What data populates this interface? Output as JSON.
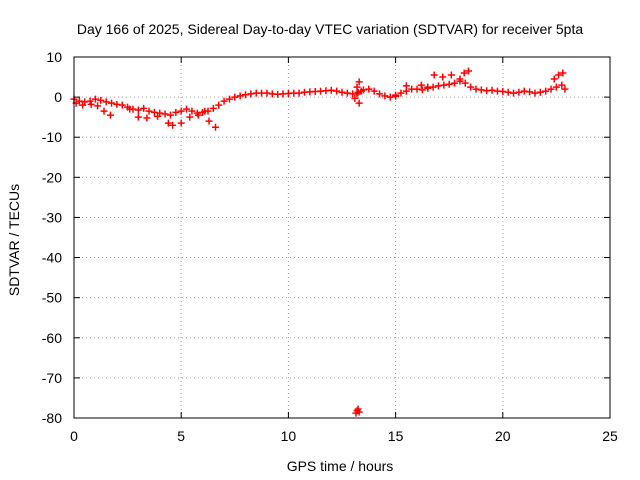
{
  "chart_data": {
    "type": "scatter",
    "title": "Day 166 of 2025, Sidereal Day-to-day VTEC variation (SDTVAR) for receiver 5pta",
    "xlabel": "GPS time / hours",
    "ylabel": "SDTVAR / TECUs",
    "xlim": [
      0,
      25
    ],
    "ylim": [
      -80,
      10
    ],
    "xticks": [
      "0",
      "5",
      "10",
      "15",
      "20",
      "25"
    ],
    "yticks": [
      "10",
      "0",
      "-10",
      "-20",
      "-30",
      "-40",
      "-50",
      "-60",
      "-70",
      "-80"
    ],
    "grid": true,
    "legend": "none",
    "series": [
      {
        "color": "#ff0000",
        "marker": "plus",
        "x": [
          0.0,
          0.25,
          0.5,
          0.75,
          1.0,
          1.25,
          1.5,
          1.75,
          2.0,
          2.25,
          2.5,
          2.75,
          3.0,
          3.25,
          3.5,
          3.75,
          4.0,
          4.25,
          4.5,
          4.75,
          5.0,
          5.25,
          5.5,
          5.75,
          6.0,
          6.25,
          6.5,
          6.75,
          7.0,
          7.25,
          7.5,
          7.75,
          8.0,
          8.25,
          8.5,
          8.75,
          9.0,
          9.25,
          9.5,
          9.75,
          10.0,
          10.25,
          10.5,
          10.75,
          11.0,
          11.25,
          11.5,
          11.75,
          12.0,
          12.25,
          12.5,
          12.75,
          13.0,
          13.25,
          13.5,
          13.75,
          14.0,
          14.25,
          14.5,
          14.75,
          15.0,
          15.25,
          15.5,
          15.75,
          16.0,
          16.25,
          16.5,
          16.75,
          17.0,
          17.25,
          17.5,
          17.75,
          18.0,
          18.25,
          18.5,
          18.75,
          19.0,
          19.25,
          19.5,
          19.75,
          20.0,
          20.25,
          20.5,
          20.75,
          21.0,
          21.25,
          21.5,
          21.75,
          22.0,
          22.25,
          22.5,
          22.75,
          0.1,
          0.4,
          0.8,
          1.1,
          1.4,
          1.7,
          2.6,
          3.0,
          3.4,
          3.9,
          4.4,
          4.6,
          5.0,
          5.4,
          5.8,
          6.1,
          6.3,
          6.6,
          13.2,
          13.3,
          13.3,
          13.2,
          13.1,
          13.4,
          15.0,
          15.5,
          16.2,
          16.5,
          16.8,
          17.2,
          17.6,
          18.0,
          18.2,
          18.4,
          22.4,
          22.6,
          22.8,
          22.9
        ],
        "y": [
          -0.5,
          -1.0,
          -1.2,
          -1.0,
          -0.5,
          -0.8,
          -1.2,
          -1.5,
          -1.8,
          -2.0,
          -2.5,
          -3.0,
          -3.2,
          -2.8,
          -3.5,
          -3.8,
          -4.0,
          -4.2,
          -4.5,
          -3.8,
          -3.5,
          -3.0,
          -3.5,
          -4.0,
          -3.8,
          -3.5,
          -2.8,
          -2.0,
          -1.0,
          -0.5,
          0.0,
          0.3,
          0.6,
          0.8,
          1.0,
          1.0,
          1.0,
          0.8,
          0.7,
          0.8,
          0.9,
          1.0,
          1.0,
          1.2,
          1.3,
          1.4,
          1.5,
          1.6,
          1.7,
          1.5,
          1.2,
          1.0,
          0.8,
          1.2,
          1.8,
          2.0,
          1.5,
          0.8,
          0.3,
          0.0,
          0.5,
          1.0,
          1.5,
          2.0,
          2.0,
          1.8,
          2.2,
          2.5,
          2.8,
          3.0,
          3.2,
          3.5,
          4.0,
          3.5,
          2.5,
          2.0,
          1.8,
          1.6,
          1.7,
          1.5,
          1.4,
          1.2,
          1.0,
          1.2,
          1.5,
          1.3,
          1.0,
          1.2,
          1.5,
          2.0,
          2.5,
          3.0,
          -1.5,
          -2.0,
          -1.8,
          -2.2,
          -3.5,
          -4.5,
          -3.0,
          -5.0,
          -5.2,
          -4.8,
          -6.5,
          -7.0,
          -6.5,
          -5.0,
          -4.5,
          -3.5,
          -6.0,
          -7.5,
          2.5,
          3.8,
          -1.5,
          0.8,
          -0.3,
          1.5,
          0.2,
          2.8,
          3.0,
          2.5,
          5.5,
          5.0,
          5.5,
          4.5,
          6.0,
          6.5,
          4.5,
          5.5,
          6.0,
          2.0
        ]
      },
      {
        "color": "#ff0000",
        "marker": "plus",
        "x": [
          13.15,
          13.2,
          13.25,
          13.3
        ],
        "y": [
          -78.8,
          -78.2,
          -77.8,
          -78.5
        ]
      }
    ]
  }
}
